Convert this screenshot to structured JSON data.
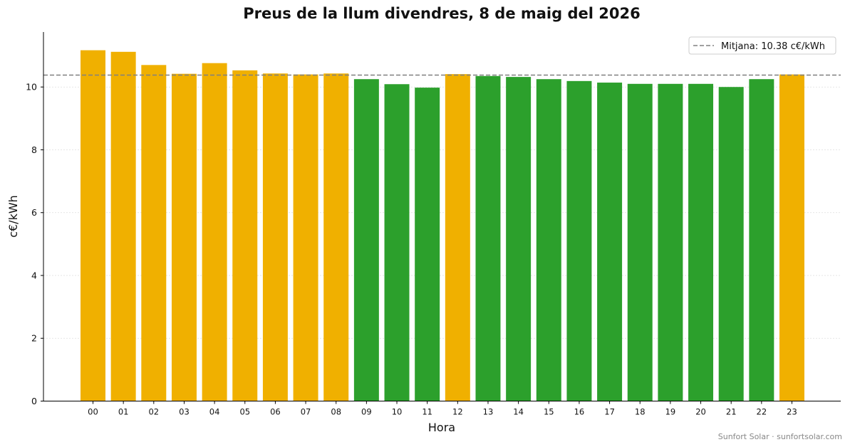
{
  "chart_data": {
    "type": "bar",
    "title": "Preus de la llum divendres, 8 de maig del 2026",
    "xlabel": "Hora",
    "ylabel": "c€/kWh",
    "ylim": [
      0,
      11.75
    ],
    "yticks": [
      0,
      2,
      4,
      6,
      8,
      10
    ],
    "grid": "horizontal dotted",
    "legend_position": "top-right",
    "categories": [
      "00",
      "01",
      "02",
      "03",
      "04",
      "05",
      "06",
      "07",
      "08",
      "09",
      "10",
      "11",
      "12",
      "13",
      "14",
      "15",
      "16",
      "17",
      "18",
      "19",
      "20",
      "21",
      "22",
      "23"
    ],
    "values": [
      11.17,
      11.12,
      10.7,
      10.42,
      10.76,
      10.53,
      10.43,
      10.4,
      10.43,
      10.25,
      10.09,
      9.98,
      10.41,
      10.35,
      10.32,
      10.25,
      10.19,
      10.14,
      10.1,
      10.1,
      10.1,
      10.0,
      10.25,
      10.4
    ],
    "colors": [
      "#F0B000",
      "#F0B000",
      "#F0B000",
      "#F0B000",
      "#F0B000",
      "#F0B000",
      "#F0B000",
      "#F0B000",
      "#F0B000",
      "#2CA02C",
      "#2CA02C",
      "#2CA02C",
      "#F0B000",
      "#2CA02C",
      "#2CA02C",
      "#2CA02C",
      "#2CA02C",
      "#2CA02C",
      "#2CA02C",
      "#2CA02C",
      "#2CA02C",
      "#2CA02C",
      "#2CA02C",
      "#F0B000"
    ],
    "reference_line": {
      "value": 10.38,
      "label": "Mitjana: 10.38 c€/kWh",
      "color": "#808080",
      "style": "dashed"
    }
  },
  "footer": "Sunfort Solar · sunfortsolar.com"
}
